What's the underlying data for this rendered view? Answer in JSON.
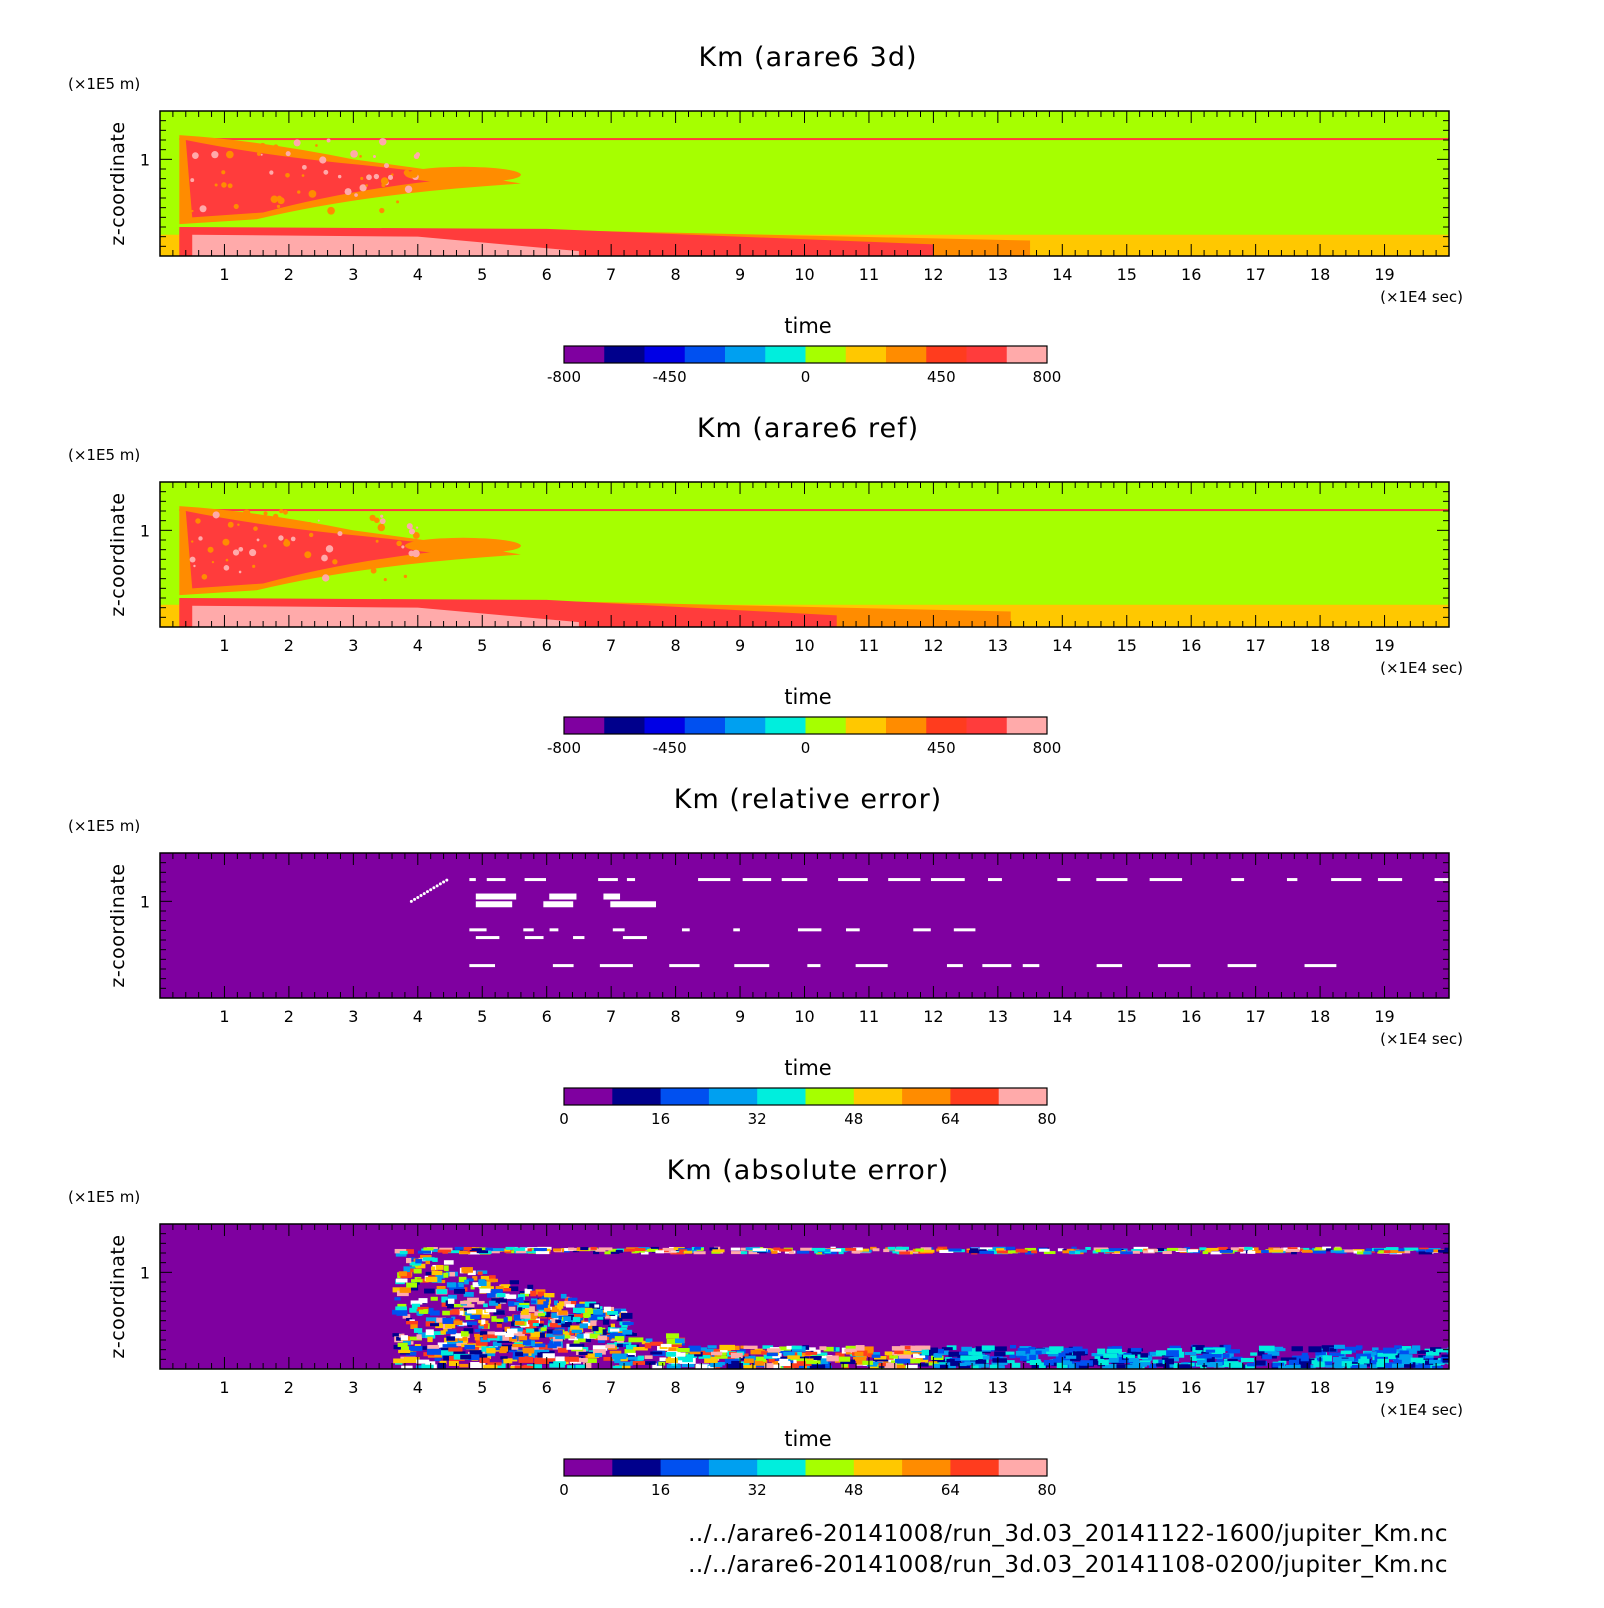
{
  "chart_data": [
    {
      "type": "heatmap",
      "title": "Km (arare6 3d)",
      "xlabel": "time",
      "x_unit": "(×1E4 sec)",
      "ylabel": "z-coordinate",
      "y_unit": "(×1E5 m)",
      "xlim": [
        0,
        20
      ],
      "ylim": [
        0,
        1.5
      ],
      "x_ticks": [
        "1",
        "2",
        "3",
        "4",
        "5",
        "6",
        "7",
        "8",
        "9",
        "10",
        "11",
        "12",
        "13",
        "14",
        "15",
        "16",
        "17",
        "18",
        "19"
      ],
      "y_ticks": [
        "1"
      ],
      "colorbar": {
        "range": [
          -800,
          800
        ],
        "tick_labels": [
          "-800",
          "-450",
          "0",
          "450",
          "800"
        ],
        "colors": [
          "#7f00a0",
          "#00008c",
          "#0000e6",
          "#0050f0",
          "#00a0f0",
          "#00eedd",
          "#a6ff00",
          "#ffc800",
          "#ff8c00",
          "#ff3c1e",
          "#ff3c3c",
          "#ffaaaa"
        ]
      }
    },
    {
      "type": "heatmap",
      "title": "Km (arare6 ref)",
      "xlabel": "time",
      "x_unit": "(×1E4 sec)",
      "ylabel": "z-coordinate",
      "y_unit": "(×1E5 m)",
      "xlim": [
        0,
        20
      ],
      "ylim": [
        0,
        1.5
      ],
      "x_ticks": [
        "1",
        "2",
        "3",
        "4",
        "5",
        "6",
        "7",
        "8",
        "9",
        "10",
        "11",
        "12",
        "13",
        "14",
        "15",
        "16",
        "17",
        "18",
        "19"
      ],
      "y_ticks": [
        "1"
      ],
      "colorbar": {
        "range": [
          -800,
          800
        ],
        "tick_labels": [
          "-800",
          "-450",
          "0",
          "450",
          "800"
        ],
        "colors": [
          "#7f00a0",
          "#00008c",
          "#0000e6",
          "#0050f0",
          "#00a0f0",
          "#00eedd",
          "#a6ff00",
          "#ffc800",
          "#ff8c00",
          "#ff3c1e",
          "#ff3c3c",
          "#ffaaaa"
        ]
      }
    },
    {
      "type": "heatmap",
      "title": "Km (relative error)",
      "xlabel": "time",
      "x_unit": "(×1E4 sec)",
      "ylabel": "z-coordinate",
      "y_unit": "(×1E5 m)",
      "xlim": [
        0,
        20
      ],
      "ylim": [
        0,
        1.5
      ],
      "x_ticks": [
        "1",
        "2",
        "3",
        "4",
        "5",
        "6",
        "7",
        "8",
        "9",
        "10",
        "11",
        "12",
        "13",
        "14",
        "15",
        "16",
        "17",
        "18",
        "19"
      ],
      "y_ticks": [
        "1"
      ],
      "colorbar": {
        "range": [
          0,
          80
        ],
        "tick_labels": [
          "0",
          "16",
          "32",
          "48",
          "64",
          "80"
        ],
        "colors": [
          "#7f00a0",
          "#00008c",
          "#0050f0",
          "#00a0f0",
          "#00eedd",
          "#a6ff00",
          "#ffc800",
          "#ff8c00",
          "#ff3c1e",
          "#ffaaaa"
        ]
      }
    },
    {
      "type": "heatmap",
      "title": "Km (absolute error)",
      "xlabel": "time",
      "x_unit": "(×1E4 sec)",
      "ylabel": "z-coordinate",
      "y_unit": "(×1E5 m)",
      "xlim": [
        0,
        20
      ],
      "ylim": [
        0,
        1.5
      ],
      "x_ticks": [
        "1",
        "2",
        "3",
        "4",
        "5",
        "6",
        "7",
        "8",
        "9",
        "10",
        "11",
        "12",
        "13",
        "14",
        "15",
        "16",
        "17",
        "18",
        "19"
      ],
      "y_ticks": [
        "1"
      ],
      "colorbar": {
        "range": [
          0,
          80
        ],
        "tick_labels": [
          "0",
          "16",
          "32",
          "48",
          "64",
          "80"
        ],
        "colors": [
          "#7f00a0",
          "#00008c",
          "#0050f0",
          "#00a0f0",
          "#00eedd",
          "#a6ff00",
          "#ffc800",
          "#ff8c00",
          "#ff3c1e",
          "#ffaaaa"
        ]
      }
    }
  ],
  "footer": {
    "line1": "../../arare6-20141008/run_3d.03_20141122-1600/jupiter_Km.nc",
    "line2": "../../arare6-20141008/run_3d.03_20141108-0200/jupiter_Km.nc"
  }
}
